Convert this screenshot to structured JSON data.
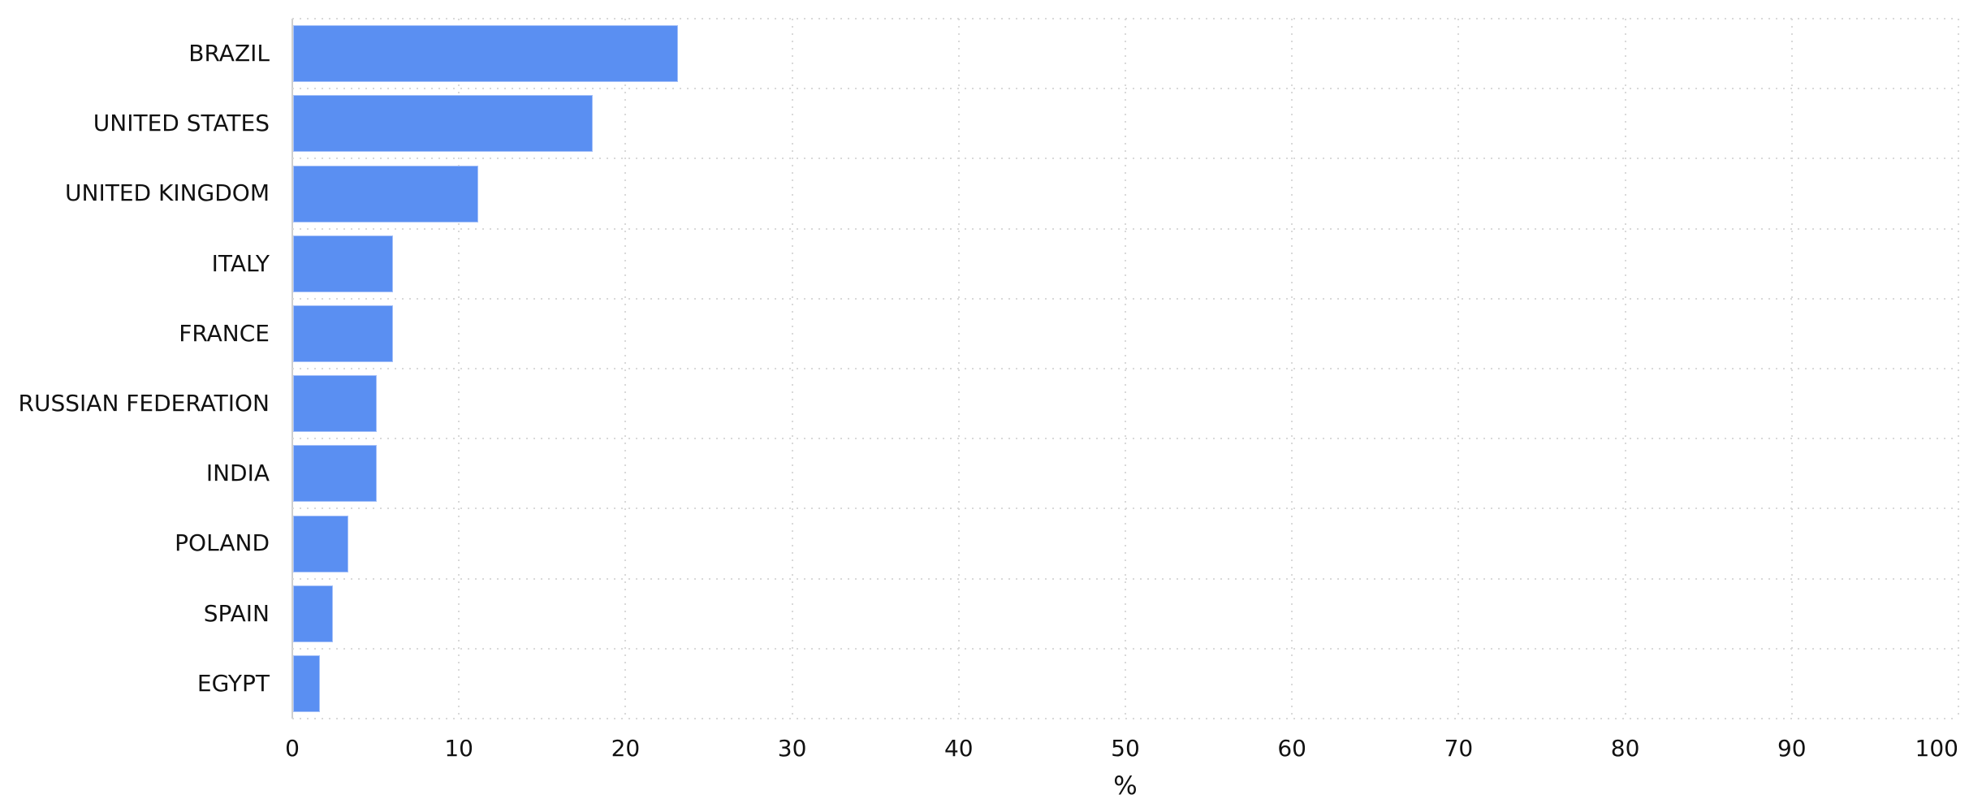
{
  "chart_data": {
    "type": "bar",
    "orientation": "horizontal",
    "title": "",
    "xlabel": "%",
    "ylabel": "",
    "categories": [
      "BRAZIL",
      "UNITED STATES",
      "UNITED KINGDOM",
      "ITALY",
      "FRANCE",
      "RUSSIAN FEDERATION",
      "INDIA",
      "POLAND",
      "SPAIN",
      "EGYPT"
    ],
    "values": [
      23.1,
      18.0,
      11.1,
      6.0,
      6.0,
      5.0,
      5.0,
      3.3,
      2.4,
      1.6
    ],
    "xlim": [
      0,
      100
    ],
    "x_ticks": [
      0,
      10,
      20,
      30,
      40,
      50,
      60,
      70,
      80,
      90,
      100
    ],
    "x_tick_labels": [
      "0",
      "10",
      "20",
      "30",
      "40",
      "50",
      "60",
      "70",
      "80",
      "90",
      "100"
    ],
    "grid": "dotted",
    "legend": "none",
    "bar_color": "#5a8ff2"
  },
  "colors": {
    "bar": "#5a8ff2",
    "bar_border": "#a6c1f8",
    "grid": "#d9d9d9",
    "axis": "#cfcfcf",
    "text": "#111111",
    "background": "#ffffff"
  }
}
